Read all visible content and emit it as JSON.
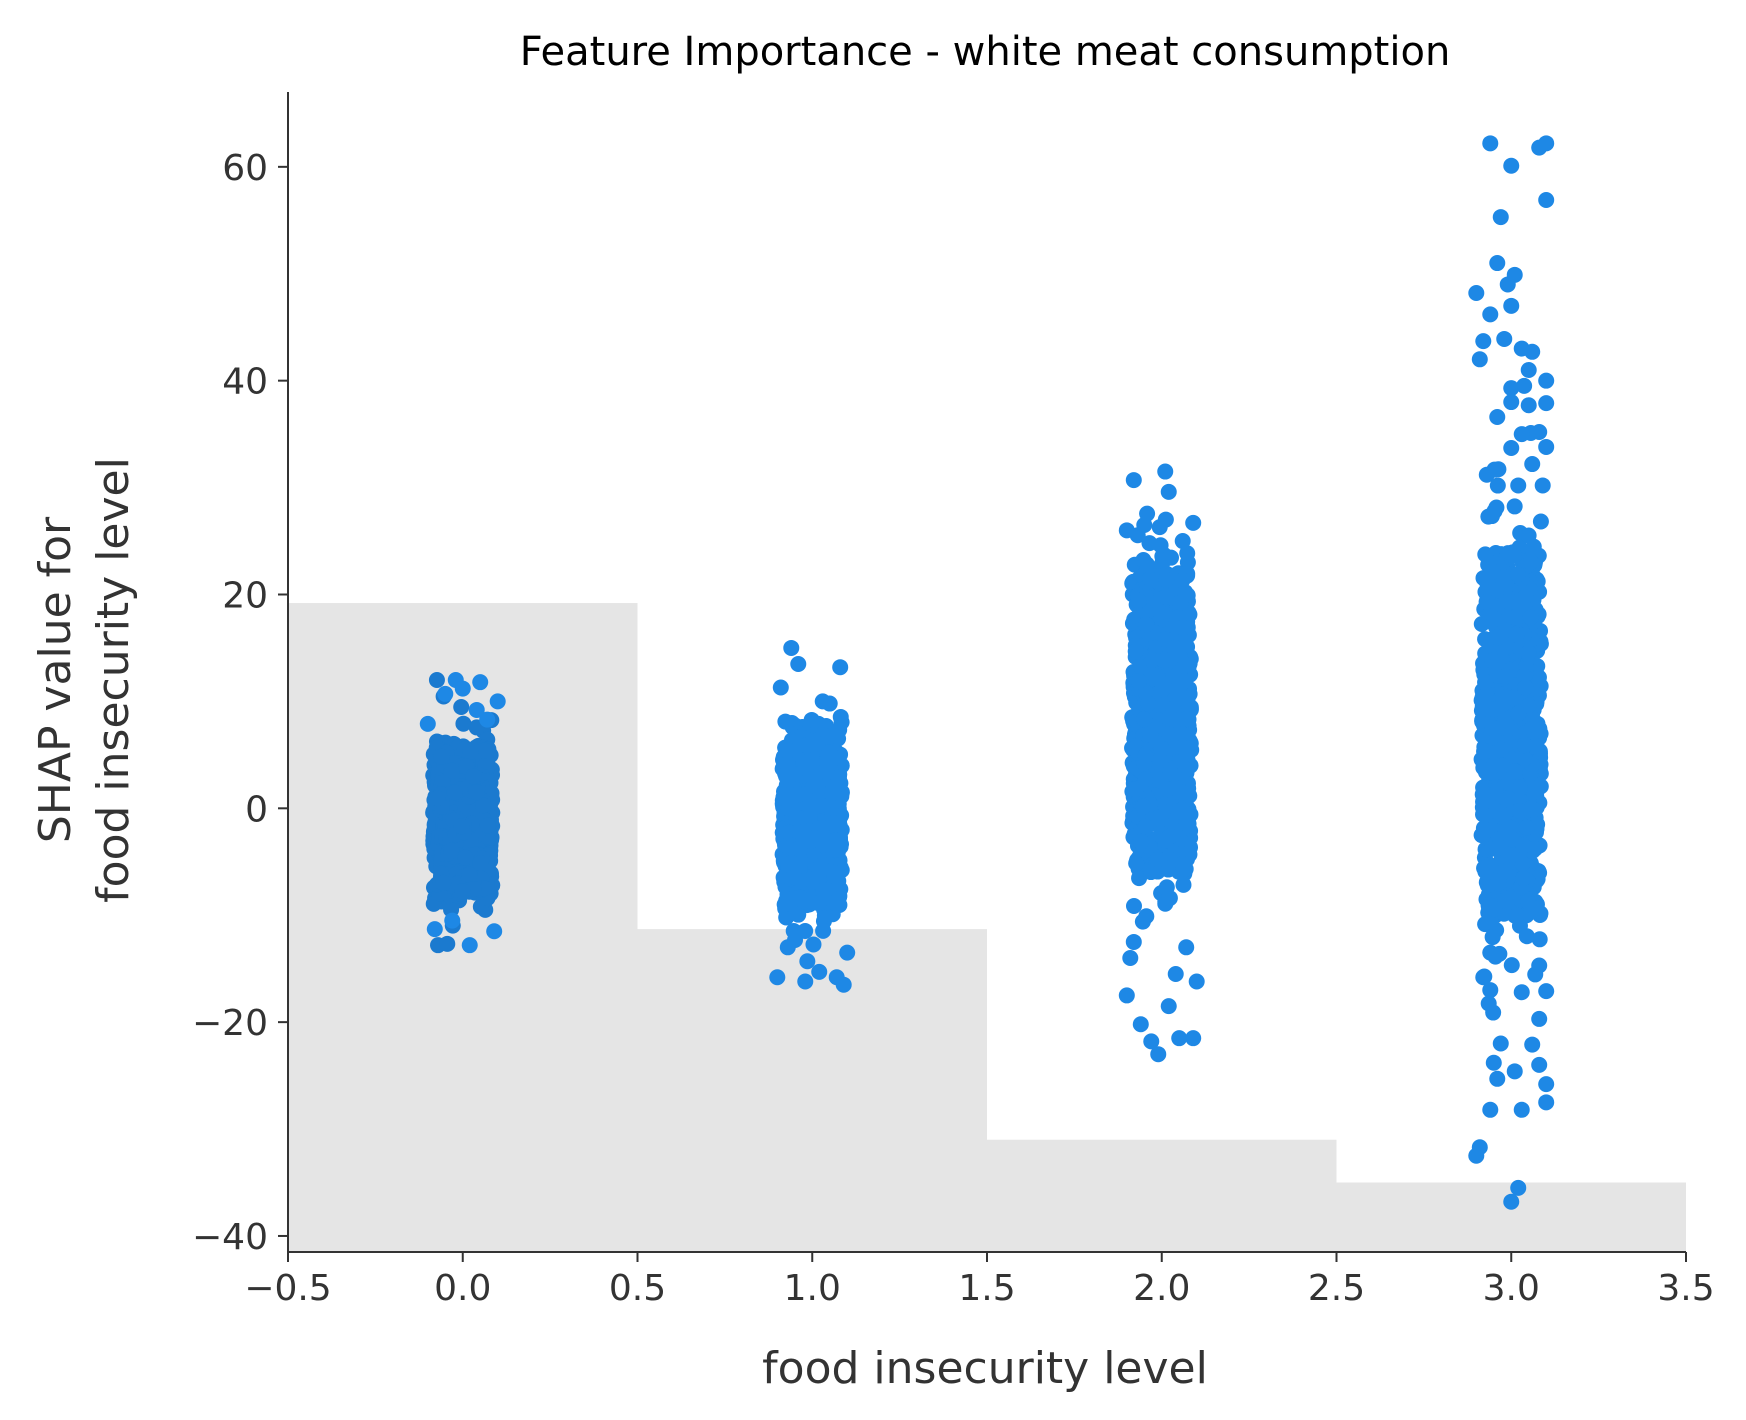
{
  "chart_data": {
    "type": "scatter",
    "title": "Feature Importance - white meat consumption",
    "xlabel": "food insecurity level",
    "ylabel_lines": [
      "SHAP value for",
      "food insecurity level"
    ],
    "xlim": [
      -0.5,
      3.5
    ],
    "ylim": [
      -41.5,
      67
    ],
    "x_ticks": [
      -0.5,
      0.0,
      0.5,
      1.0,
      1.5,
      2.0,
      2.5,
      3.0,
      3.5
    ],
    "x_tick_labels": [
      "−0.5",
      "0.0",
      "0.5",
      "1.0",
      "1.5",
      "2.0",
      "2.5",
      "3.0",
      "3.5"
    ],
    "y_ticks": [
      -40,
      -20,
      0,
      20,
      40,
      60
    ],
    "y_tick_labels": [
      "−40",
      "−20",
      "0",
      "20",
      "40",
      "60"
    ],
    "grid": false,
    "point_color": "#1e88e5",
    "dense_core_color_level0": "#1b7acf",
    "histogram_color": "#e5e5e5",
    "histogram": [
      {
        "x0": -0.5,
        "x1": 0.5,
        "top": 19.2
      },
      {
        "x0": 0.5,
        "x1": 1.5,
        "top": -11.3
      },
      {
        "x0": 1.5,
        "x1": 2.5,
        "top": -31.0
      },
      {
        "x0": 2.5,
        "x1": 3.5,
        "top": -35.0
      }
    ],
    "groups": [
      {
        "x": 0,
        "core_range": [
          -8,
          6
        ],
        "min": -12.8,
        "max": 12.0,
        "outliers": [
          [
            -0.02,
            12.0
          ],
          [
            0.0,
            11.2
          ],
          [
            0.05,
            11.8
          ],
          [
            -0.05,
            10.7
          ],
          [
            0.1,
            10.0
          ],
          [
            0.04,
            9.2
          ],
          [
            -0.1,
            7.9
          ],
          [
            0.07,
            8.3
          ],
          [
            0.02,
            -12.8
          ],
          [
            -0.08,
            -11.3
          ],
          [
            0.09,
            -11.5
          ],
          [
            -0.03,
            -10.5
          ]
        ]
      },
      {
        "x": 1,
        "core_range": [
          -9,
          7
        ],
        "min": -16.5,
        "max": 15.0,
        "outliers": [
          [
            -0.06,
            15.0
          ],
          [
            -0.04,
            13.5
          ],
          [
            0.08,
            13.2
          ],
          [
            -0.09,
            11.3
          ],
          [
            0.03,
            10.0
          ],
          [
            0.05,
            9.8
          ],
          [
            -0.1,
            -15.8
          ],
          [
            -0.02,
            -16.2
          ],
          [
            0.02,
            -15.3
          ],
          [
            0.07,
            -15.8
          ],
          [
            0.09,
            -16.5
          ],
          [
            -0.07,
            -13.0
          ],
          [
            0.1,
            -13.5
          ]
        ]
      },
      {
        "x": 2,
        "core_range": [
          -6,
          22
        ],
        "min": -23.0,
        "max": 31.5,
        "outliers": [
          [
            0.01,
            31.5
          ],
          [
            -0.08,
            30.7
          ],
          [
            0.02,
            29.6
          ],
          [
            -0.1,
            26.0
          ],
          [
            0.09,
            26.7
          ],
          [
            0.06,
            25.0
          ],
          [
            -0.05,
            26.5
          ],
          [
            -0.1,
            -17.5
          ],
          [
            0.1,
            -16.2
          ],
          [
            -0.06,
            -20.2
          ],
          [
            0.02,
            -18.5
          ],
          [
            -0.03,
            -21.8
          ],
          [
            0.05,
            -21.5
          ],
          [
            -0.01,
            -23.0
          ],
          [
            0.09,
            -21.5
          ],
          [
            -0.09,
            -14.0
          ],
          [
            0.07,
            -13.0
          ],
          [
            0.04,
            -15.5
          ],
          [
            -0.08,
            -12.5
          ]
        ]
      },
      {
        "x": 3,
        "core_range": [
          -10,
          24
        ],
        "min": -36.8,
        "max": 62.2,
        "outliers": [
          [
            -0.06,
            62.2
          ],
          [
            0.0,
            60.1
          ],
          [
            0.08,
            61.8
          ],
          [
            0.1,
            62.2
          ],
          [
            0.1,
            56.9
          ],
          [
            -0.03,
            55.3
          ],
          [
            -0.04,
            51.0
          ],
          [
            -0.01,
            49.0
          ],
          [
            0.01,
            49.9
          ],
          [
            -0.1,
            48.2
          ],
          [
            -0.06,
            46.2
          ],
          [
            0.0,
            47.0
          ],
          [
            -0.08,
            43.7
          ],
          [
            -0.09,
            42.0
          ],
          [
            0.03,
            43.0
          ],
          [
            0.06,
            42.7
          ],
          [
            -0.02,
            43.9
          ],
          [
            0.05,
            41.0
          ],
          [
            0.1,
            40.0
          ],
          [
            0.0,
            39.3
          ],
          [
            -0.04,
            36.6
          ],
          [
            0.0,
            38.0
          ],
          [
            0.05,
            37.7
          ],
          [
            0.1,
            37.9
          ],
          [
            0.03,
            35.0
          ],
          [
            0.08,
            35.2
          ],
          [
            0.1,
            33.8
          ],
          [
            0.06,
            32.2
          ],
          [
            0.0,
            33.7
          ],
          [
            0.02,
            30.2
          ],
          [
            0.09,
            30.2
          ],
          [
            -0.07,
            31.2
          ],
          [
            -0.08,
            -15.8
          ],
          [
            -0.06,
            -17.0
          ],
          [
            0.03,
            -17.2
          ],
          [
            0.1,
            -17.1
          ],
          [
            0.08,
            -19.7
          ],
          [
            -0.03,
            -22.0
          ],
          [
            0.06,
            -22.1
          ],
          [
            -0.05,
            -23.8
          ],
          [
            0.08,
            -24.0
          ],
          [
            0.01,
            -24.6
          ],
          [
            -0.04,
            -25.3
          ],
          [
            0.1,
            -25.8
          ],
          [
            0.1,
            -27.5
          ],
          [
            -0.06,
            -28.2
          ],
          [
            0.03,
            -28.2
          ],
          [
            -0.09,
            -31.7
          ],
          [
            -0.1,
            -32.5
          ],
          [
            0.02,
            -35.5
          ],
          [
            0.0,
            -36.8
          ],
          [
            -0.06,
            -13.5
          ],
          [
            0.08,
            -14.7
          ]
        ]
      }
    ]
  }
}
